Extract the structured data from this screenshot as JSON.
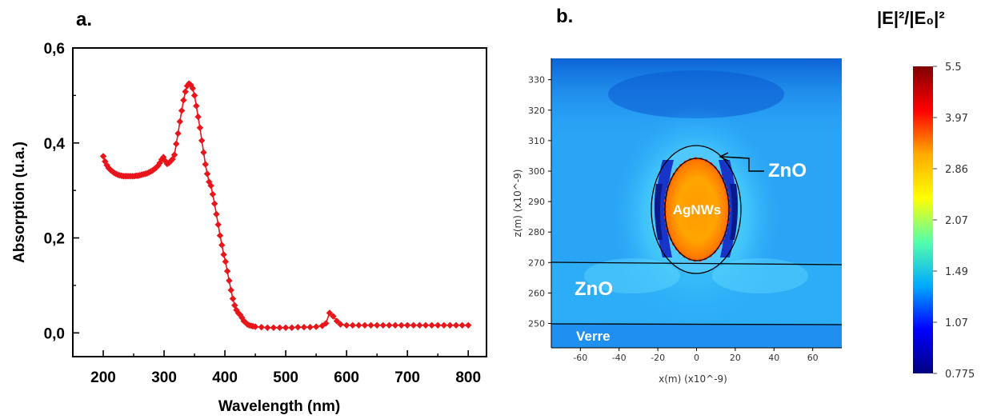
{
  "chart_data": [
    {
      "type": "scatter",
      "panel_label": "a.",
      "xlabel": "Wavelength (nm)",
      "ylabel": "Absorption (u.a.)",
      "xlim": [
        150,
        830
      ],
      "ylim": [
        -0.05,
        0.6
      ],
      "xticks": [
        200,
        300,
        400,
        500,
        600,
        700,
        800
      ],
      "xtick_labels": [
        "200",
        "300",
        "400",
        "500",
        "600",
        "700",
        "800"
      ],
      "yticks": [
        0.0,
        0.2,
        0.4,
        0.6
      ],
      "ytick_labels": [
        "0,0",
        "0,2",
        "0,4",
        "0,6"
      ],
      "series": [
        {
          "color": "#e8161b",
          "marker": "diamond",
          "x": [
            200,
            203,
            206,
            209,
            212,
            215,
            218,
            221,
            224,
            227,
            230,
            233,
            236,
            239,
            242,
            245,
            248,
            251,
            254,
            257,
            260,
            263,
            266,
            269,
            272,
            275,
            278,
            281,
            284,
            287,
            290,
            293,
            296,
            299,
            302,
            305,
            308,
            311,
            314,
            317,
            320,
            323,
            326,
            329,
            332,
            335,
            338,
            341,
            344,
            347,
            350,
            353,
            356,
            359,
            362,
            365,
            368,
            371,
            374,
            377,
            380,
            383,
            386,
            389,
            392,
            395,
            398,
            401,
            404,
            407,
            410,
            413,
            416,
            419,
            422,
            425,
            428,
            431,
            434,
            437,
            440,
            443,
            446,
            450,
            460,
            470,
            480,
            490,
            500,
            510,
            520,
            530,
            540,
            550,
            560,
            566,
            572,
            578,
            584,
            590,
            600,
            610,
            620,
            630,
            640,
            650,
            660,
            670,
            680,
            690,
            700,
            710,
            720,
            730,
            740,
            750,
            760,
            770,
            780,
            790,
            800
          ],
          "y": [
            0.372,
            0.361,
            0.353,
            0.347,
            0.343,
            0.34,
            0.337,
            0.335,
            0.333,
            0.332,
            0.331,
            0.33,
            0.33,
            0.33,
            0.33,
            0.33,
            0.33,
            0.33,
            0.331,
            0.331,
            0.332,
            0.333,
            0.334,
            0.335,
            0.336,
            0.338,
            0.34,
            0.342,
            0.345,
            0.348,
            0.352,
            0.358,
            0.365,
            0.37,
            0.362,
            0.356,
            0.358,
            0.362,
            0.366,
            0.375,
            0.398,
            0.42,
            0.445,
            0.468,
            0.49,
            0.508,
            0.52,
            0.525,
            0.522,
            0.515,
            0.5,
            0.478,
            0.455,
            0.432,
            0.405,
            0.38,
            0.355,
            0.335,
            0.318,
            0.31,
            0.292,
            0.272,
            0.25,
            0.228,
            0.205,
            0.185,
            0.165,
            0.15,
            0.13,
            0.11,
            0.09,
            0.072,
            0.058,
            0.048,
            0.042,
            0.038,
            0.032,
            0.025,
            0.022,
            0.018,
            0.016,
            0.015,
            0.014,
            0.013,
            0.012,
            0.011,
            0.011,
            0.011,
            0.011,
            0.011,
            0.012,
            0.012,
            0.012,
            0.013,
            0.015,
            0.02,
            0.042,
            0.035,
            0.025,
            0.018,
            0.016,
            0.016,
            0.016,
            0.016,
            0.016,
            0.016,
            0.016,
            0.016,
            0.016,
            0.016,
            0.016,
            0.016,
            0.016,
            0.016,
            0.016,
            0.016,
            0.016,
            0.016,
            0.016,
            0.016,
            0.016
          ]
        }
      ]
    },
    {
      "type": "heatmap",
      "panel_label": "b.",
      "colorbar_title": "|E|²/|E₀|²",
      "xlabel": "x(m) (x10^-9)",
      "ylabel": "z(m) (x10^-9)",
      "xlim": [
        -75,
        75
      ],
      "ylim": [
        242,
        337
      ],
      "xticks": [
        -60,
        -40,
        -20,
        0,
        20,
        40,
        60
      ],
      "xtick_labels": [
        "-60",
        "-40",
        "-20",
        "0",
        "20",
        "40",
        "60"
      ],
      "yticks": [
        250,
        260,
        270,
        280,
        290,
        300,
        310,
        320,
        330
      ],
      "ytick_labels": [
        "250",
        "260",
        "270",
        "280",
        "290",
        "300",
        "310",
        "320",
        "330"
      ],
      "colorbar_ticks": [
        "5.5",
        "3.97",
        "2.86",
        "2.07",
        "1.49",
        "1.07",
        "0.775"
      ],
      "colorbar_colors": [
        "#7f0000",
        "#ff0000",
        "#ffaa00",
        "#ffff00",
        "#55ffaa",
        "#00aaff",
        "#0000ff",
        "#00007f"
      ],
      "annotations": {
        "zno_arrow": "ZnO",
        "agnws": "AgNWs",
        "zno_layer": "ZnO",
        "verre": "Verre"
      }
    }
  ]
}
